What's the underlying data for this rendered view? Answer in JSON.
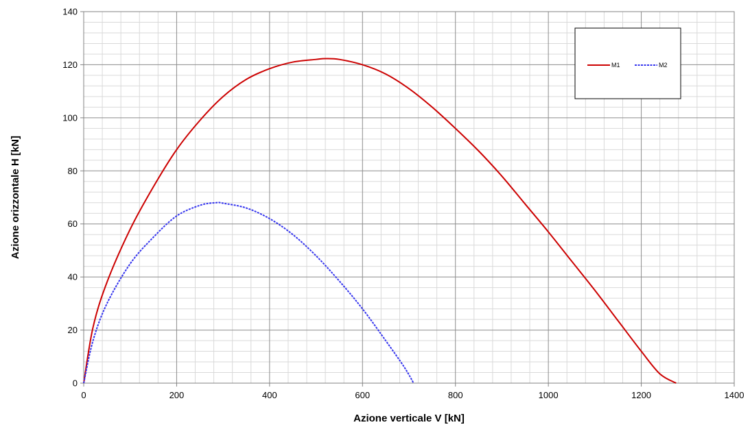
{
  "chart_data": {
    "type": "line",
    "title": "",
    "xlabel": "Azione verticale V [kN]",
    "ylabel": "Azione orizzontale H [kN]",
    "xlim": [
      0,
      1400
    ],
    "ylim": [
      0,
      140
    ],
    "x_major_ticks": [
      0,
      200,
      400,
      600,
      800,
      1000,
      1200,
      1400
    ],
    "y_major_ticks": [
      0,
      20,
      40,
      60,
      80,
      100,
      120,
      140
    ],
    "x_minor_step": 40,
    "y_minor_step": 4,
    "grid": true,
    "legend_position": "top-right",
    "series": [
      {
        "name": "M1",
        "color": "#cc0000",
        "line_style": "solid",
        "points": [
          [
            0,
            0
          ],
          [
            20,
            21
          ],
          [
            50,
            38
          ],
          [
            100,
            58
          ],
          [
            150,
            74
          ],
          [
            200,
            88
          ],
          [
            250,
            99
          ],
          [
            300,
            108
          ],
          [
            350,
            114.5
          ],
          [
            400,
            118.5
          ],
          [
            450,
            121
          ],
          [
            500,
            122
          ],
          [
            520,
            122.3
          ],
          [
            550,
            122
          ],
          [
            600,
            120
          ],
          [
            650,
            116.5
          ],
          [
            700,
            111
          ],
          [
            750,
            104
          ],
          [
            800,
            96
          ],
          [
            850,
            87.5
          ],
          [
            900,
            78
          ],
          [
            950,
            67.5
          ],
          [
            1000,
            57
          ],
          [
            1050,
            46
          ],
          [
            1100,
            35
          ],
          [
            1150,
            23.5
          ],
          [
            1200,
            12
          ],
          [
            1240,
            3.5
          ],
          [
            1275,
            0
          ]
        ]
      },
      {
        "name": "M2",
        "color": "#3333ee",
        "line_style": "dashed",
        "points": [
          [
            0,
            0
          ],
          [
            20,
            16
          ],
          [
            50,
            30
          ],
          [
            100,
            45
          ],
          [
            150,
            55
          ],
          [
            200,
            63
          ],
          [
            250,
            67
          ],
          [
            285,
            68
          ],
          [
            300,
            67.8
          ],
          [
            350,
            66
          ],
          [
            400,
            62
          ],
          [
            450,
            56
          ],
          [
            500,
            48
          ],
          [
            550,
            38.5
          ],
          [
            600,
            28
          ],
          [
            650,
            16
          ],
          [
            690,
            6
          ],
          [
            710,
            0
          ]
        ]
      }
    ]
  }
}
